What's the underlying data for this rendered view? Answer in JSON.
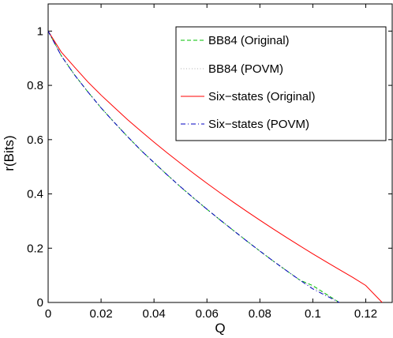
{
  "chart_data": {
    "type": "line",
    "xlabel": "Q",
    "ylabel": "r(Bits)",
    "xlim": [
      0,
      0.13
    ],
    "ylim": [
      0,
      1.1
    ],
    "xticks": [
      0,
      0.02,
      0.04,
      0.06,
      0.08,
      0.1,
      0.12
    ],
    "xtick_labels": [
      "0",
      "0.02",
      "0.04",
      "0.06",
      "0.08",
      "0.1",
      "0.12"
    ],
    "yticks": [
      0,
      0.2,
      0.4,
      0.6,
      0.8,
      1
    ],
    "ytick_labels": [
      "0",
      "0.2",
      "0.4",
      "0.6",
      "0.8",
      "1"
    ],
    "grid": false,
    "legend_position": "top-right",
    "series": [
      {
        "name": "BB84 (Original)",
        "color": "#00c000",
        "dash": "dashed",
        "x": [
          0,
          0.005,
          0.01,
          0.015,
          0.02,
          0.025,
          0.03,
          0.035,
          0.04,
          0.045,
          0.05,
          0.055,
          0.06,
          0.065,
          0.07,
          0.075,
          0.08,
          0.085,
          0.09,
          0.095,
          0.1,
          0.105,
          0.11
        ],
        "y": [
          1.0,
          0.9086,
          0.8384,
          0.7761,
          0.7171,
          0.6633,
          0.6112,
          0.5611,
          0.5155,
          0.4701,
          0.4263,
          0.3844,
          0.3436,
          0.3039,
          0.2653,
          0.2268,
          0.1895,
          0.1528,
          0.1176,
          0.083,
          0.062,
          0.0312,
          0.0
        ]
      },
      {
        "name": "BB84 (POVM)",
        "color": "#b0b0b0",
        "dash": "dotted",
        "x": [
          0,
          0.005,
          0.01,
          0.015,
          0.02,
          0.025,
          0.03,
          0.035,
          0.04,
          0.045,
          0.05,
          0.055,
          0.06,
          0.065,
          0.07,
          0.075,
          0.08,
          0.085,
          0.09,
          0.095,
          0.1,
          0.105,
          0.11
        ],
        "y": [
          1.0,
          0.9086,
          0.8384,
          0.7761,
          0.7171,
          0.6633,
          0.6112,
          0.5611,
          0.5155,
          0.4701,
          0.4263,
          0.3844,
          0.3436,
          0.3039,
          0.2653,
          0.2268,
          0.1895,
          0.1528,
          0.1176,
          0.083,
          0.056,
          0.028,
          0.0
        ]
      },
      {
        "name": "Six−states (Original)",
        "color": "#ff0000",
        "dash": "solid",
        "x": [
          0,
          0.005,
          0.01,
          0.015,
          0.02,
          0.025,
          0.03,
          0.035,
          0.04,
          0.045,
          0.05,
          0.055,
          0.06,
          0.065,
          0.07,
          0.075,
          0.08,
          0.085,
          0.09,
          0.095,
          0.1,
          0.105,
          0.11,
          0.115,
          0.12,
          0.1262
        ],
        "y": [
          1.0,
          0.9223,
          0.8671,
          0.8128,
          0.7641,
          0.7188,
          0.6737,
          0.6318,
          0.5909,
          0.5512,
          0.5128,
          0.4754,
          0.4391,
          0.4038,
          0.3695,
          0.3359,
          0.3031,
          0.2711,
          0.2398,
          0.2092,
          0.1793,
          0.1499,
          0.1212,
          0.093,
          0.0626,
          0.0
        ]
      },
      {
        "name": "Six−states (POVM)",
        "color": "#0000c0",
        "dash": "dashdot",
        "x": [
          0,
          0.005,
          0.01,
          0.015,
          0.02,
          0.025,
          0.03,
          0.035,
          0.04,
          0.045,
          0.05,
          0.055,
          0.06,
          0.065,
          0.07,
          0.075,
          0.08,
          0.085,
          0.09,
          0.095,
          0.1,
          0.105,
          0.11
        ],
        "y": [
          1.0,
          0.9086,
          0.8384,
          0.7761,
          0.7171,
          0.6633,
          0.6112,
          0.5611,
          0.5155,
          0.4701,
          0.4263,
          0.3844,
          0.3436,
          0.3039,
          0.2653,
          0.2268,
          0.1895,
          0.1528,
          0.1176,
          0.083,
          0.05,
          0.025,
          0.0
        ]
      }
    ]
  }
}
